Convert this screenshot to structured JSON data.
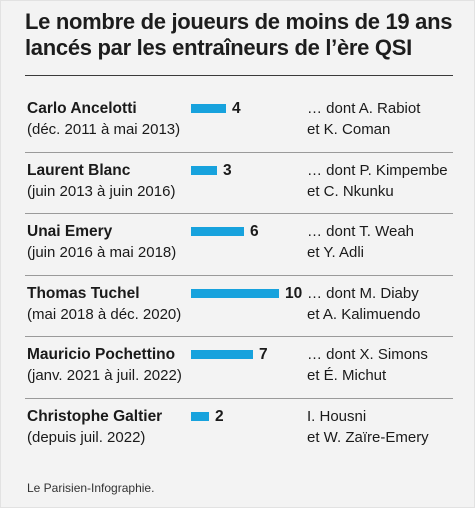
{
  "title": "Le nombre de joueurs de moins de 19 ans lancés par les entraîneurs de l’ère QSI",
  "source": "Le Parisien-Infographie.",
  "colors": {
    "bar": "#17a2dd",
    "background": "#f3f3f3"
  },
  "chart_data": {
    "type": "bar",
    "orientation": "horizontal",
    "title": "Le nombre de joueurs de moins de 19 ans lancés par les entraîneurs de l’ère QSI",
    "categories": [
      "Carlo Ancelotti",
      "Laurent Blanc",
      "Unai Emery",
      "Thomas Tuchel",
      "Mauricio Pochettino",
      "Christophe Galtier"
    ],
    "values": [
      4,
      3,
      6,
      10,
      7,
      2
    ],
    "value_labels": [
      "4",
      "3",
      "6",
      "10",
      "7",
      "2"
    ],
    "xlim": [
      0,
      10
    ],
    "grid": false,
    "legend": "none",
    "rows": [
      {
        "name": "Carlo Ancelotti",
        "period": "(déc. 2011 à mai 2013)",
        "note_line1": "… dont A. Rabiot",
        "note_line2": "et K. Coman"
      },
      {
        "name": "Laurent Blanc",
        "period": "(juin 2013 à juin 2016)",
        "note_line1": "… dont P. Kimpembe",
        "note_line2": "et C. Nkunku"
      },
      {
        "name": "Unai Emery",
        "period": "(juin 2016 à mai 2018)",
        "note_line1": "… dont T. Weah",
        "note_line2": "et Y. Adli"
      },
      {
        "name": "Thomas Tuchel",
        "period": "(mai 2018 à déc. 2020)",
        "note_line1": "… dont M. Diaby",
        "note_line2": "et A. Kalimuendo"
      },
      {
        "name": "Mauricio Pochettino",
        "period": "(janv. 2021 à juil. 2022)",
        "note_line1": "… dont X. Simons",
        "note_line2": "et É. Michut"
      },
      {
        "name": "Christophe Galtier",
        "period": "(depuis juil. 2022)",
        "note_line1": "I. Housni",
        "note_line2": "et W. Zaïre-Emery"
      }
    ]
  }
}
